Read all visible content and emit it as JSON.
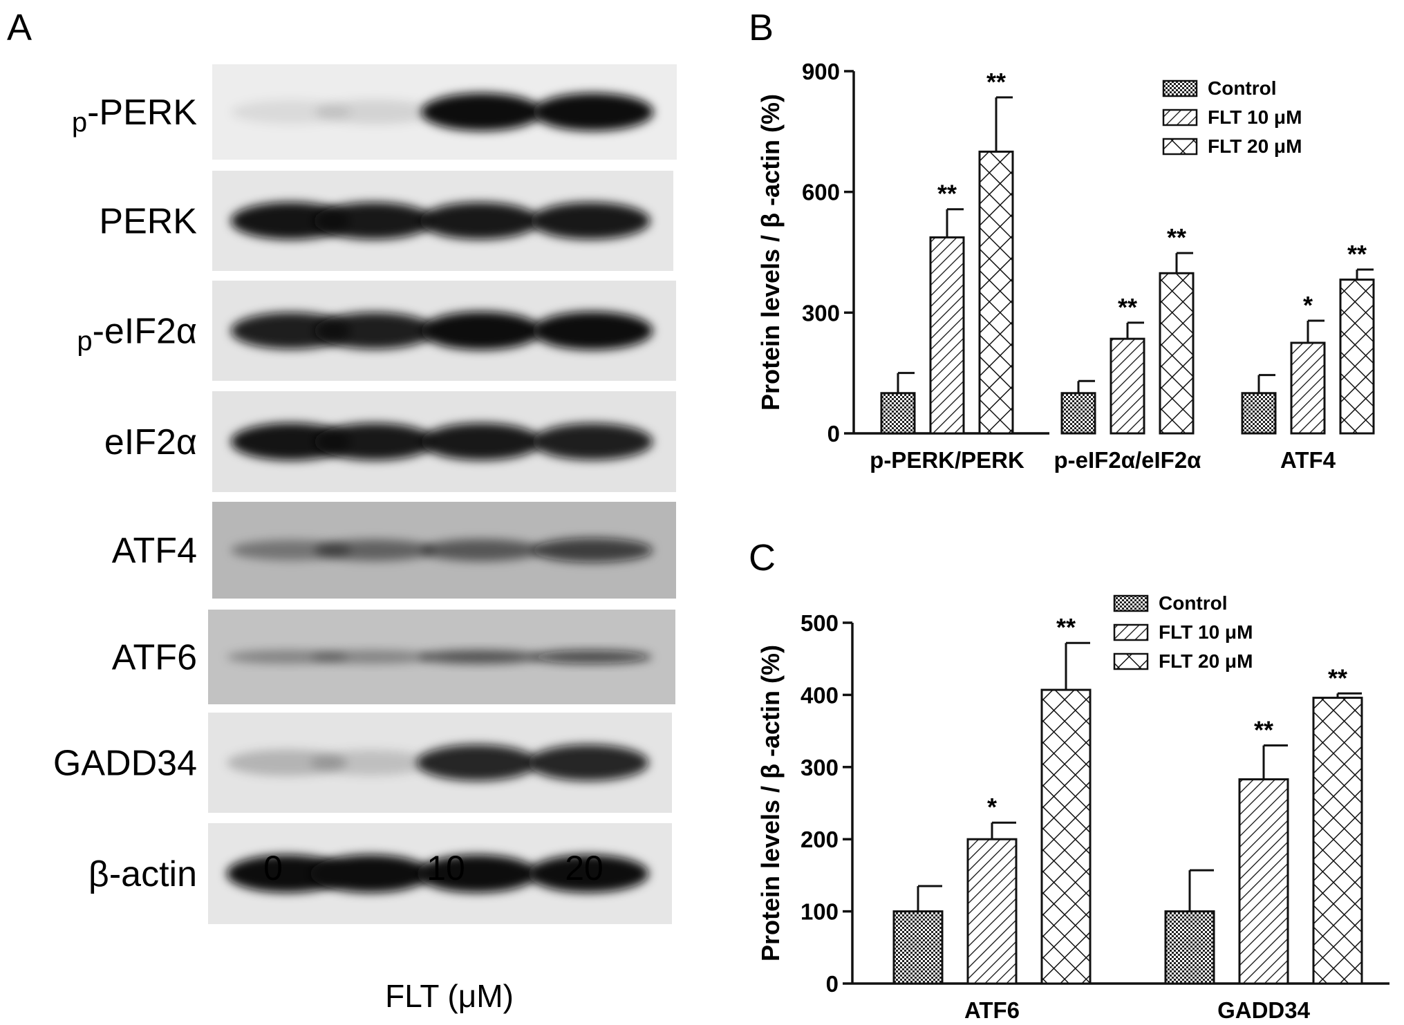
{
  "panel_a": {
    "letter": "A",
    "blots": [
      {
        "label_prefix": "p",
        "label": "-PERK",
        "intensities": [
          0.08,
          0.1,
          0.95,
          0.95
        ]
      },
      {
        "label_prefix": "",
        "label": "PERK",
        "intensities": [
          0.92,
          0.9,
          0.9,
          0.9
        ]
      },
      {
        "label_prefix": "p",
        "label": "-eIF2α",
        "intensities": [
          0.88,
          0.88,
          0.98,
          0.98
        ]
      },
      {
        "label_prefix": "",
        "label": "eIF2α",
        "intensities": [
          0.92,
          0.9,
          0.9,
          0.88
        ]
      },
      {
        "label_prefix": "",
        "label": "ATF4",
        "intensities": [
          0.35,
          0.45,
          0.5,
          0.7
        ]
      },
      {
        "label_prefix": "",
        "label": "ATF6",
        "intensities": [
          0.3,
          0.3,
          0.55,
          0.65
        ]
      },
      {
        "label_prefix": "",
        "label": "GADD34",
        "intensities": [
          0.2,
          0.15,
          0.85,
          0.85
        ]
      },
      {
        "label_prefix": "",
        "label": "β-actin",
        "intensities": [
          0.95,
          0.95,
          0.95,
          0.95
        ]
      }
    ],
    "lane_labels": [
      "0",
      "10",
      "20"
    ],
    "axis_label": "FLT (μM)"
  },
  "chart_data": [
    {
      "type": "bar",
      "panel": "B",
      "categories": [
        "p-PERK/PERK",
        "p-eIF2α/eIF2α",
        "ATF4"
      ],
      "series": [
        {
          "name": "Control",
          "values": [
            100,
            100,
            100
          ],
          "errors": [
            50,
            30,
            45
          ],
          "pattern": "dots"
        },
        {
          "name": "FLT 10 μM",
          "values": [
            487,
            235,
            225
          ],
          "errors": [
            70,
            40,
            55
          ],
          "pattern": "hatch"
        },
        {
          "name": "FLT 20 μM",
          "values": [
            700,
            398,
            382
          ],
          "errors": [
            135,
            50,
            25
          ],
          "pattern": "cross"
        }
      ],
      "significance": [
        [
          "",
          "",
          ""
        ],
        [
          "**",
          "**",
          "*"
        ],
        [
          "**",
          "**",
          "**"
        ]
      ],
      "ylabel": "Protein levels / β -actin (%)",
      "ylim": [
        0,
        900
      ],
      "yticks": [
        0,
        300,
        600,
        900
      ],
      "legend": "top-right",
      "grid": false
    },
    {
      "type": "bar",
      "panel": "C",
      "categories": [
        "ATF6",
        "GADD34"
      ],
      "series": [
        {
          "name": "Control",
          "values": [
            100,
            100
          ],
          "errors": [
            35,
            57
          ],
          "pattern": "dots"
        },
        {
          "name": "FLT 10 μM",
          "values": [
            200,
            283
          ],
          "errors": [
            23,
            47
          ],
          "pattern": "hatch"
        },
        {
          "name": "FLT 20 μM",
          "values": [
            407,
            396
          ],
          "errors": [
            65,
            6
          ],
          "pattern": "cross"
        }
      ],
      "significance": [
        [
          "",
          ""
        ],
        [
          "*",
          "**"
        ],
        [
          "**",
          "**"
        ]
      ],
      "ylabel": "Protein levels / β -actin (%)",
      "ylim": [
        0,
        500
      ],
      "yticks": [
        0,
        100,
        200,
        300,
        400,
        500
      ],
      "legend": "top-right",
      "grid": false
    }
  ]
}
